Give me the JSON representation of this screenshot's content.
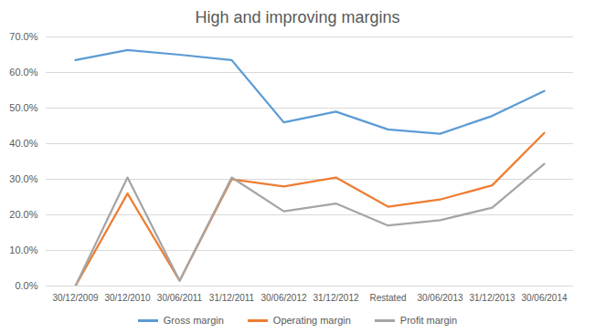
{
  "chart_data": {
    "type": "line",
    "title": "High and improving margins",
    "categories": [
      "30/12/2009",
      "30/12/2010",
      "30/06/2011",
      "31/12/2011",
      "30/06/2012",
      "31/12/2012",
      "Restated",
      "30/06/2013",
      "31/12/2013",
      "30/06/2014"
    ],
    "series": [
      {
        "name": "Gross margin",
        "color": "#5b9bd5",
        "values": [
          63.5,
          66.3,
          65.0,
          63.5,
          46.0,
          49.0,
          44.0,
          42.8,
          47.8,
          54.8
        ]
      },
      {
        "name": "Operating margin",
        "color": "#ed7d31",
        "values": [
          0.0,
          26.0,
          1.5,
          30.0,
          28.0,
          30.5,
          22.3,
          24.3,
          28.3,
          43.0
        ]
      },
      {
        "name": "Profit margin",
        "color": "#a5a5a5",
        "values": [
          0.0,
          30.5,
          1.5,
          30.5,
          21.0,
          23.2,
          17.0,
          18.5,
          22.0,
          34.3
        ]
      }
    ],
    "ylim": [
      0,
      70
    ],
    "yticks": [
      {
        "value": 0,
        "label": "0.0%"
      },
      {
        "value": 10,
        "label": "10.0%"
      },
      {
        "value": 20,
        "label": "20.0%"
      },
      {
        "value": 30,
        "label": "30.0%"
      },
      {
        "value": 40,
        "label": "40.0%"
      },
      {
        "value": 50,
        "label": "50.0%"
      },
      {
        "value": 60,
        "label": "60.0%"
      },
      {
        "value": 70,
        "label": "70.0%"
      }
    ],
    "grid": true,
    "legend": "bottom"
  }
}
